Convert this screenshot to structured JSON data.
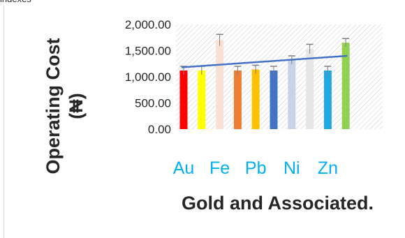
{
  "top_fragment": "indexes",
  "chart_data": {
    "type": "bar",
    "title": "",
    "xlabel": "Gold and Associated.",
    "ylabel_line1": "Operating Cost",
    "ylabel_line2": "(₦)",
    "ylim": [
      0,
      2000
    ],
    "yticks": [
      "0.00",
      "500.00",
      "1,000.00",
      "1,500.00",
      "2,000.00"
    ],
    "category_labels": [
      "Au",
      "Fe",
      "Pb",
      "Ni",
      "Zn"
    ],
    "values": [
      1120,
      1120,
      1700,
      1120,
      1140,
      1120,
      1320,
      1530,
      1120,
      1650
    ],
    "error_upper": [
      80,
      80,
      110,
      80,
      80,
      80,
      80,
      90,
      80,
      80
    ],
    "error_lower": [
      80,
      80,
      110,
      80,
      80,
      80,
      80,
      90,
      80,
      80
    ],
    "bar_colors": [
      "#ff0000",
      "#ffff00",
      "#fbe1d4",
      "#ed7d31",
      "#ffc000",
      "#4472c4",
      "#c9d3e8",
      "#e6e6e6",
      "#22a7e0",
      "#92d050"
    ],
    "trendline": {
      "start": 1180,
      "end": 1400,
      "color": "#4472c4"
    },
    "grid": false,
    "plot_background": "hatched",
    "label_color": "#00b0f0",
    "text_color": "#262626"
  }
}
